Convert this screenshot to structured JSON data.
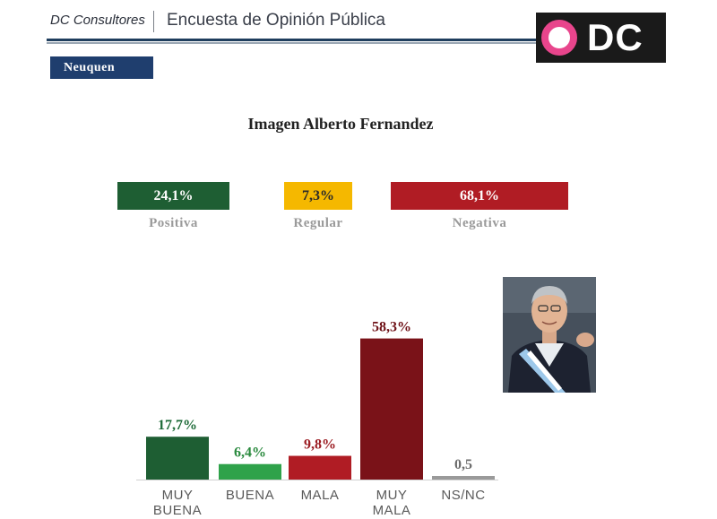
{
  "header": {
    "brand": "DC Consultores",
    "title": "Encuesta de Opinión Pública",
    "logo_text": "DC"
  },
  "region_tab": "Neuquen",
  "chart_data": [
    {
      "type": "table",
      "title": "Imagen Alberto Fernandez",
      "items": [
        {
          "label": "Positiva",
          "value_text": "24,1%",
          "value": 24.1,
          "color": "#1e5e33"
        },
        {
          "label": "Regular",
          "value_text": "7,3%",
          "value": 7.3,
          "color": "#f5b800"
        },
        {
          "label": "Negativa",
          "value_text": "68,1%",
          "value": 68.1,
          "color": "#b01c24"
        }
      ]
    },
    {
      "type": "bar",
      "categories": [
        [
          "MUY",
          "BUENA"
        ],
        [
          "BUENA"
        ],
        [
          "MALA"
        ],
        [
          "MUY",
          "MALA"
        ],
        [
          "NS/NC"
        ]
      ],
      "values": [
        17.7,
        6.4,
        9.8,
        58.3,
        0.5
      ],
      "value_labels": [
        "17,7%",
        "6,4%",
        "9,8%",
        "58,3%",
        "0,5"
      ],
      "colors": [
        "#1e5e33",
        "#2fa24a",
        "#b01c24",
        "#7a1218",
        "#9a9a9a"
      ],
      "label_colors": [
        "#1e6b38",
        "#2a8a3e",
        "#9b1c22",
        "#6e1016",
        "#6a6a6a"
      ],
      "ylim": [
        0,
        60
      ]
    }
  ]
}
